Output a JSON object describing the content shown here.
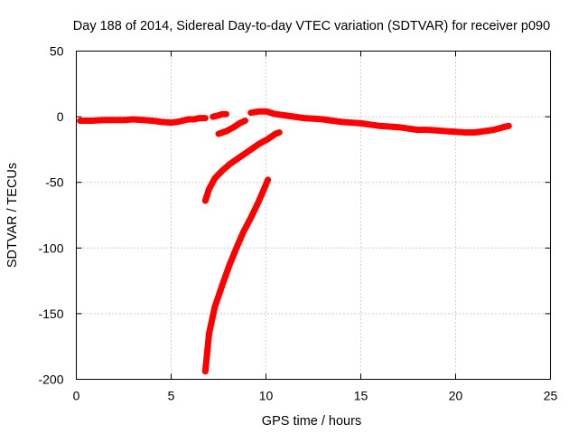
{
  "chart_data": {
    "type": "scatter",
    "title": "Day 188 of 2014, Sidereal Day-to-day VTEC variation (SDTVAR) for receiver p090",
    "xlabel": "GPS time / hours",
    "ylabel": "SDTVAR / TECUs",
    "xlim": [
      0,
      25
    ],
    "ylim": [
      -200,
      50
    ],
    "xticks": [
      "0",
      "5",
      "10",
      "15",
      "20",
      "25"
    ],
    "yticks": [
      "50",
      "0",
      "-50",
      "-100",
      "-150",
      "-200"
    ],
    "grid": true,
    "legend": "none",
    "color": "#ff0000",
    "series": [
      {
        "name": "main-trace",
        "x": [
          0.2,
          0.8,
          1.5,
          2.0,
          2.5,
          3.0,
          3.5,
          4.0,
          4.5,
          5.0,
          5.3,
          5.6,
          5.9,
          6.2,
          6.5,
          6.8
        ],
        "y": [
          -3,
          -3,
          -2.5,
          -2.5,
          -2.5,
          -2,
          -2.5,
          -3,
          -4,
          -4.5,
          -4,
          -3,
          -2,
          -2,
          -1,
          -1
        ]
      },
      {
        "name": "short-upper-segment",
        "x": [
          7.2,
          7.5,
          7.7,
          7.9
        ],
        "y": [
          0,
          1,
          2,
          2
        ]
      },
      {
        "name": "post-gap-trace",
        "x": [
          9.2,
          9.6,
          10.0,
          10.5,
          11.0,
          11.5,
          12.0,
          12.5,
          13.0,
          13.5,
          14.0,
          14.5,
          15.0,
          15.5,
          16.0,
          16.5,
          17.0,
          17.5,
          18.0,
          18.5,
          19.0,
          19.5,
          20.0,
          20.5,
          21.0,
          21.5,
          22.0,
          22.5,
          22.8
        ],
        "y": [
          3,
          4,
          4,
          2,
          1,
          0,
          -1,
          -1.5,
          -2,
          -3,
          -4,
          -4.5,
          -5,
          -6,
          -7,
          -7.5,
          -8,
          -9,
          -10,
          -10,
          -10.5,
          -11,
          -11.5,
          -12,
          -12,
          -11,
          -10,
          -8,
          -7
        ]
      },
      {
        "name": "descending-branch-a",
        "x": [
          7.5,
          7.9,
          8.3,
          8.6,
          8.9
        ],
        "y": [
          -13,
          -11,
          -8,
          -5,
          -3
        ]
      },
      {
        "name": "descending-branch-b",
        "x": [
          6.8,
          7.0,
          7.3,
          7.7,
          8.1,
          8.6,
          9.1,
          9.6,
          10.1,
          10.5,
          10.7
        ],
        "y": [
          -64,
          -55,
          -47,
          -41,
          -36,
          -31,
          -26,
          -21,
          -17,
          -13,
          -12
        ]
      },
      {
        "name": "descending-branch-c",
        "x": [
          6.8,
          7.0,
          7.3,
          7.7,
          8.1,
          8.5,
          8.8,
          9.2,
          9.6,
          9.9,
          10.1
        ],
        "y": [
          -194,
          -165,
          -145,
          -128,
          -112,
          -98,
          -88,
          -77,
          -65,
          -55,
          -48
        ]
      }
    ]
  }
}
